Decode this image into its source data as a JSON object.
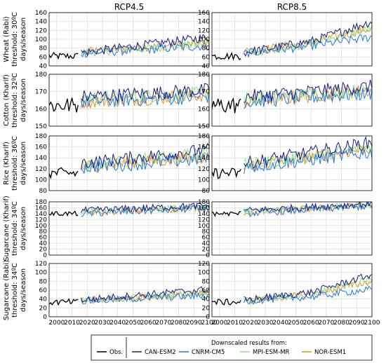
{
  "chart_data": {
    "type": "line",
    "columns": [
      "RCP4.5",
      "RCP8.5"
    ],
    "rows": [
      {
        "label_lines": [
          "Wheat (Rabi)",
          "threshold: 30ºC",
          "days/season"
        ],
        "ylim": [
          40,
          160
        ],
        "yticks": [
          40,
          60,
          80,
          100,
          120,
          140,
          160
        ]
      },
      {
        "label_lines": [
          "Cotton (Kharif)",
          "threshold: 32ºC",
          "days/season"
        ],
        "ylim": [
          150,
          180
        ],
        "yticks": [
          150,
          160,
          170,
          180
        ]
      },
      {
        "label_lines": [
          "Rice (Kharif)",
          "threshold: 36ºC",
          "days/season"
        ],
        "ylim": [
          80,
          180
        ],
        "yticks": [
          80,
          100,
          120,
          140,
          160,
          180
        ]
      },
      {
        "label_lines": [
          "Sugarcane (Kharif)",
          "threshold: 34ºC",
          "days/season"
        ],
        "ylim": [
          0,
          180
        ],
        "yticks": [
          0,
          20,
          40,
          60,
          80,
          100,
          120,
          140,
          160,
          180
        ]
      },
      {
        "label_lines": [
          "Sugarcane (Rabi)",
          "threshold: 34ºC",
          "days/season"
        ],
        "ylim": [
          0,
          120
        ],
        "yticks": [
          0,
          20,
          40,
          60,
          80,
          100,
          120
        ]
      }
    ],
    "xlim": [
      1995,
      2100
    ],
    "xticks": [
      2000,
      2010,
      2020,
      2030,
      2040,
      2050,
      2060,
      2070,
      2080,
      2090,
      2100
    ],
    "grid": true,
    "legend": {
      "placement": "bottom",
      "title": "Downscaled results from:",
      "entries": [
        "Obs.",
        "CAN-ESM2",
        "CNRM-CM5",
        "MPI-ESM-MR",
        "NOR-ESM1"
      ]
    },
    "series_colors": {
      "Obs.": "#000000",
      "CAN-ESM2": "#1a1a8c",
      "CNRM-CM5": "#1f78e6",
      "MPI-ESM-MR": "#8ee07a",
      "NOR-ESM1": "#f08c1e"
    },
    "series_trends": {
      "note_units": "days/season",
      "panels": [
        {
          "row": 0,
          "col": 0,
          "obs": {
            "start": 1995,
            "end": 2014,
            "mean": 62,
            "amp": 8
          },
          "models": {
            "CAN-ESM2": [
              [
                2016,
                70
              ],
              [
                2100,
                105
              ]
            ],
            "CNRM-CM5": [
              [
                2016,
                68
              ],
              [
                2100,
                85
              ]
            ],
            "MPI-ESM-MR": [
              [
                2016,
                70
              ],
              [
                2100,
                90
              ]
            ],
            "NOR-ESM1": [
              [
                2016,
                72
              ],
              [
                2100,
                92
              ]
            ]
          },
          "amp": 10
        },
        {
          "row": 0,
          "col": 1,
          "obs": {
            "start": 1995,
            "end": 2014,
            "mean": 62,
            "amp": 8
          },
          "models": {
            "CAN-ESM2": [
              [
                2016,
                70
              ],
              [
                2060,
                95
              ],
              [
                2100,
                140
              ]
            ],
            "CNRM-CM5": [
              [
                2016,
                68
              ],
              [
                2060,
                85
              ],
              [
                2100,
                105
              ]
            ],
            "MPI-ESM-MR": [
              [
                2016,
                68
              ],
              [
                2060,
                90
              ],
              [
                2100,
                125
              ]
            ],
            "NOR-ESM1": [
              [
                2016,
                72
              ],
              [
                2060,
                92
              ],
              [
                2100,
                125
              ]
            ]
          },
          "amp": 10
        },
        {
          "row": 1,
          "col": 0,
          "obs": {
            "start": 1995,
            "end": 2014,
            "mean": 162,
            "amp": 5
          },
          "models": {
            "CAN-ESM2": [
              [
                2016,
                167
              ],
              [
                2100,
                171
              ]
            ],
            "CNRM-CM5": [
              [
                2016,
                164
              ],
              [
                2100,
                167
              ]
            ],
            "MPI-ESM-MR": [
              [
                2016,
                166
              ],
              [
                2100,
                169
              ]
            ],
            "NOR-ESM1": [
              [
                2016,
                164
              ],
              [
                2100,
                168
              ]
            ]
          },
          "amp": 4
        },
        {
          "row": 1,
          "col": 1,
          "obs": {
            "start": 1995,
            "end": 2014,
            "mean": 162,
            "amp": 5
          },
          "models": {
            "CAN-ESM2": [
              [
                2016,
                167
              ],
              [
                2100,
                173
              ]
            ],
            "CNRM-CM5": [
              [
                2016,
                164
              ],
              [
                2100,
                169
              ]
            ],
            "MPI-ESM-MR": [
              [
                2016,
                166
              ],
              [
                2100,
                171
              ]
            ],
            "NOR-ESM1": [
              [
                2016,
                164
              ],
              [
                2100,
                171
              ]
            ]
          },
          "amp": 4
        },
        {
          "row": 2,
          "col": 0,
          "obs": {
            "start": 1995,
            "end": 2014,
            "mean": 112,
            "amp": 10
          },
          "models": {
            "CAN-ESM2": [
              [
                2016,
                130
              ],
              [
                2100,
                155
              ]
            ],
            "CNRM-CM5": [
              [
                2016,
                122
              ],
              [
                2100,
                138
              ]
            ],
            "MPI-ESM-MR": [
              [
                2016,
                126
              ],
              [
                2100,
                148
              ]
            ],
            "NOR-ESM1": [
              [
                2016,
                124
              ],
              [
                2100,
                142
              ]
            ]
          },
          "amp": 12
        },
        {
          "row": 2,
          "col": 1,
          "obs": {
            "start": 1995,
            "end": 2014,
            "mean": 112,
            "amp": 10
          },
          "models": {
            "CAN-ESM2": [
              [
                2016,
                130
              ],
              [
                2100,
                168
              ]
            ],
            "CNRM-CM5": [
              [
                2016,
                122
              ],
              [
                2100,
                150
              ]
            ],
            "MPI-ESM-MR": [
              [
                2016,
                126
              ],
              [
                2100,
                160
              ]
            ],
            "NOR-ESM1": [
              [
                2016,
                124
              ],
              [
                2100,
                158
              ]
            ]
          },
          "amp": 12
        },
        {
          "row": 3,
          "col": 0,
          "obs": {
            "start": 1995,
            "end": 2014,
            "mean": 140,
            "amp": 8
          },
          "models": {
            "CAN-ESM2": [
              [
                2016,
                150
              ],
              [
                2100,
                168
              ]
            ],
            "CNRM-CM5": [
              [
                2016,
                140
              ],
              [
                2100,
                158
              ]
            ],
            "MPI-ESM-MR": [
              [
                2016,
                146
              ],
              [
                2100,
                162
              ]
            ],
            "NOR-ESM1": [
              [
                2016,
                144
              ],
              [
                2100,
                160
              ]
            ]
          },
          "amp": 12
        },
        {
          "row": 3,
          "col": 1,
          "obs": {
            "start": 1995,
            "end": 2014,
            "mean": 140,
            "amp": 8
          },
          "models": {
            "CAN-ESM2": [
              [
                2016,
                150
              ],
              [
                2100,
                174
              ]
            ],
            "CNRM-CM5": [
              [
                2016,
                140
              ],
              [
                2100,
                166
              ]
            ],
            "MPI-ESM-MR": [
              [
                2016,
                146
              ],
              [
                2100,
                170
              ]
            ],
            "NOR-ESM1": [
              [
                2016,
                144
              ],
              [
                2100,
                168
              ]
            ]
          },
          "amp": 12
        },
        {
          "row": 4,
          "col": 0,
          "obs": {
            "start": 1995,
            "end": 2014,
            "mean": 33,
            "amp": 7
          },
          "models": {
            "CAN-ESM2": [
              [
                2016,
                38
              ],
              [
                2100,
                62
              ]
            ],
            "CNRM-CM5": [
              [
                2016,
                35
              ],
              [
                2100,
                48
              ]
            ],
            "MPI-ESM-MR": [
              [
                2016,
                36
              ],
              [
                2100,
                55
              ]
            ],
            "NOR-ESM1": [
              [
                2016,
                36
              ],
              [
                2100,
                52
              ]
            ]
          },
          "amp": 8
        },
        {
          "row": 4,
          "col": 1,
          "obs": {
            "start": 1995,
            "end": 2014,
            "mean": 33,
            "amp": 7
          },
          "models": {
            "CAN-ESM2": [
              [
                2016,
                38
              ],
              [
                2060,
                55
              ],
              [
                2100,
                95
              ]
            ],
            "CNRM-CM5": [
              [
                2016,
                35
              ],
              [
                2060,
                45
              ],
              [
                2100,
                62
              ]
            ],
            "MPI-ESM-MR": [
              [
                2016,
                36
              ],
              [
                2060,
                50
              ],
              [
                2100,
                85
              ]
            ],
            "NOR-ESM1": [
              [
                2016,
                36
              ],
              [
                2060,
                50
              ],
              [
                2100,
                80
              ]
            ]
          },
          "amp": 8
        }
      ]
    }
  }
}
